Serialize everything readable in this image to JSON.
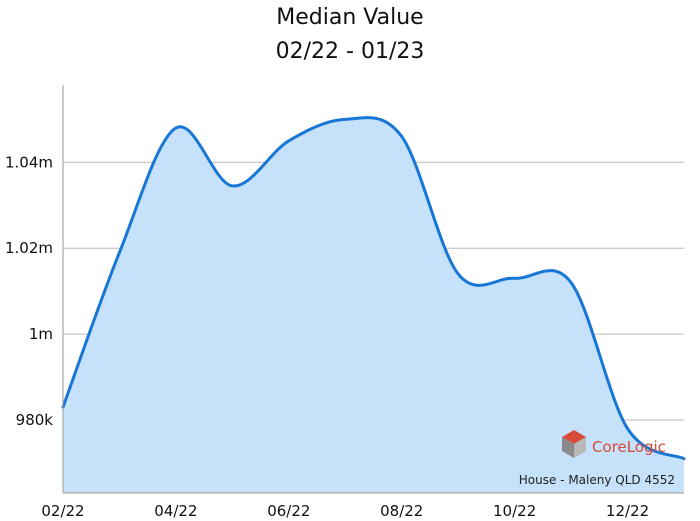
{
  "chart_data": {
    "type": "area",
    "title": "Median Value",
    "subtitle": "02/22 - 01/23",
    "xlabel": "",
    "ylabel": "",
    "x": [
      "02/22",
      "03/22",
      "04/22",
      "05/22",
      "06/22",
      "07/22",
      "08/22",
      "09/22",
      "10/22",
      "11/22",
      "12/22",
      "01/23"
    ],
    "series": [
      {
        "values": [
          983000,
          1019000,
          1048000,
          1034500,
          1045000,
          1050000,
          1046000,
          1014000,
          1013000,
          1012000,
          978000,
          971000
        ],
        "line_color": "#1877d4",
        "fill_color": "#c6e2fb"
      }
    ],
    "x_ticks": [
      "02/22",
      "04/22",
      "06/22",
      "08/22",
      "10/22",
      "12/22"
    ],
    "y_ticks": [
      {
        "value": 980000,
        "label": "980k"
      },
      {
        "value": 1000000,
        "label": "1m"
      },
      {
        "value": 1020000,
        "label": "1.02m"
      },
      {
        "value": 1040000,
        "label": "1.04m"
      }
    ],
    "ylim": [
      963000,
      1058000
    ],
    "grid": true,
    "legend": "none",
    "footnote": "House - Maleny QLD 4552"
  },
  "logo": {
    "text": "CoreLogic",
    "icon": "corelogic-cube-icon",
    "colors": [
      "#d84a3a",
      "#8a8a8a"
    ]
  }
}
